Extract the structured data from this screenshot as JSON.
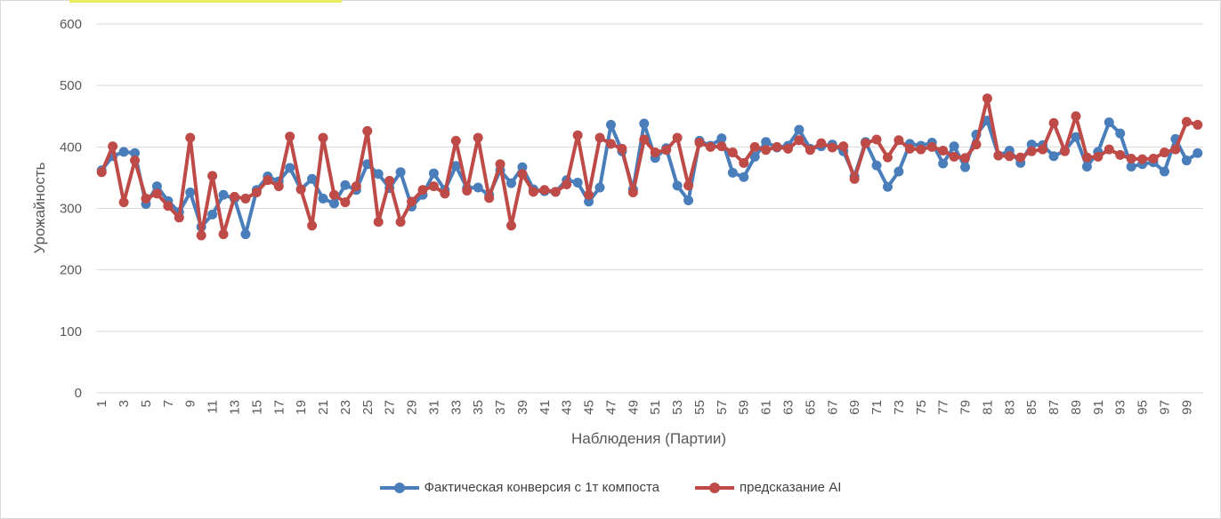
{
  "chart_data": {
    "type": "line",
    "xlabel": "Наблюдения (Партии)",
    "ylabel": "Урожайность",
    "ylim": [
      0,
      600
    ],
    "yticks": [
      0,
      100,
      200,
      300,
      400,
      500,
      600
    ],
    "x": [
      1,
      2,
      3,
      4,
      5,
      6,
      7,
      8,
      9,
      10,
      11,
      12,
      13,
      14,
      15,
      16,
      17,
      18,
      19,
      20,
      21,
      22,
      23,
      24,
      25,
      26,
      27,
      28,
      29,
      30,
      31,
      32,
      33,
      34,
      35,
      36,
      37,
      38,
      39,
      40,
      41,
      42,
      43,
      44,
      45,
      46,
      47,
      48,
      49,
      50,
      51,
      52,
      53,
      54,
      55,
      56,
      57,
      58,
      59,
      60,
      61,
      62,
      63,
      64,
      65,
      66,
      67,
      68,
      69,
      70,
      71,
      72,
      73,
      74,
      75,
      76,
      77,
      78,
      79,
      80,
      81,
      82,
      83,
      84,
      85,
      86,
      87,
      88,
      89,
      90,
      91,
      92,
      93,
      94,
      95,
      96,
      97,
      98,
      99,
      100
    ],
    "xtick_labels": [
      "1",
      "3",
      "5",
      "7",
      "9",
      "11",
      "13",
      "15",
      "17",
      "19",
      "21",
      "23",
      "25",
      "27",
      "29",
      "31",
      "33",
      "35",
      "37",
      "39",
      "41",
      "43",
      "45",
      "47",
      "49",
      "51",
      "53",
      "55",
      "57",
      "59",
      "61",
      "63",
      "65",
      "67",
      "69",
      "71",
      "73",
      "75",
      "77",
      "79",
      "81",
      "83",
      "85",
      "87",
      "89",
      "91",
      "93",
      "95",
      "97",
      "99"
    ],
    "grid": true,
    "legend_position": "bottom",
    "series": [
      {
        "name": "Фактическая конверсия с  1т компоста",
        "color": "#4a7ebb",
        "values": [
          362,
          385,
          392,
          390,
          307,
          336,
          312,
          294,
          326,
          270,
          290,
          322,
          316,
          258,
          330,
          352,
          344,
          366,
          331,
          348,
          316,
          308,
          338,
          330,
          372,
          356,
          333,
          359,
          303,
          322,
          357,
          330,
          369,
          333,
          334,
          322,
          362,
          341,
          367,
          331,
          328,
          327,
          346,
          342,
          311,
          334,
          436,
          393,
          331,
          438,
          382,
          398,
          337,
          313,
          410,
          402,
          414,
          358,
          351,
          384,
          408,
          399,
          402,
          428,
          397,
          401,
          404,
          393,
          352,
          408,
          370,
          335,
          360,
          405,
          402,
          407,
          373,
          401,
          367,
          420,
          443,
          386,
          394,
          374,
          404,
          403,
          385,
          394,
          416,
          368,
          392,
          440,
          422,
          368,
          372,
          375,
          360,
          413,
          378,
          390
        ]
      },
      {
        "name": "предсказание AI",
        "color": "#be4b48",
        "values": [
          359,
          401,
          310,
          378,
          316,
          324,
          304,
          285,
          415,
          256,
          353,
          258,
          319,
          316,
          326,
          346,
          336,
          417,
          331,
          272,
          415,
          322,
          310,
          336,
          426,
          278,
          345,
          278,
          311,
          330,
          336,
          324,
          410,
          329,
          415,
          317,
          372,
          272,
          356,
          327,
          330,
          327,
          339,
          419,
          322,
          415,
          405,
          397,
          326,
          412,
          391,
          395,
          415,
          337,
          407,
          400,
          401,
          391,
          374,
          400,
          395,
          400,
          397,
          411,
          395,
          406,
          399,
          401,
          348,
          406,
          412,
          383,
          411,
          397,
          396,
          400,
          394,
          384,
          382,
          404,
          479,
          386,
          385,
          383,
          393,
          396,
          439,
          393,
          450,
          383,
          384,
          396,
          387,
          381,
          380,
          381,
          391,
          396,
          441,
          436
        ]
      }
    ]
  }
}
